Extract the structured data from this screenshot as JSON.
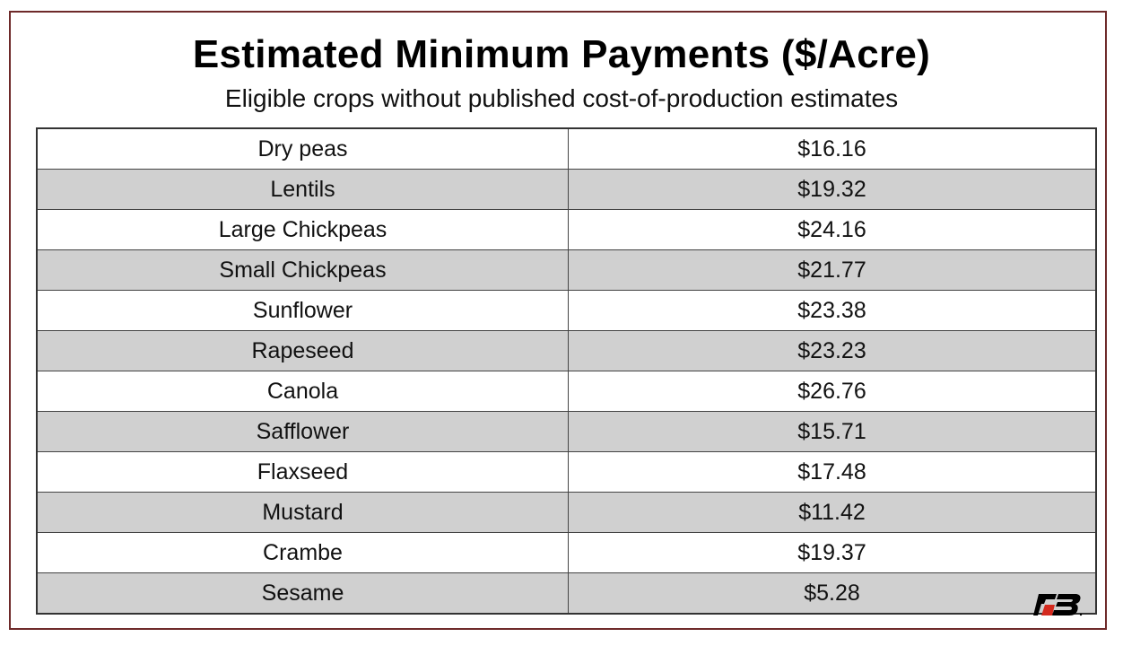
{
  "title": "Estimated Minimum Payments ($/Acre)",
  "subtitle": "Eligible crops without published cost-of-production estimates",
  "rows": [
    {
      "crop": "Dry peas",
      "payment": "$16.16"
    },
    {
      "crop": "Lentils",
      "payment": "$19.32"
    },
    {
      "crop": "Large Chickpeas",
      "payment": "$24.16"
    },
    {
      "crop": "Small Chickpeas",
      "payment": "$21.77"
    },
    {
      "crop": "Sunflower",
      "payment": "$23.38"
    },
    {
      "crop": "Rapeseed",
      "payment": "$23.23"
    },
    {
      "crop": "Canola",
      "payment": "$26.76"
    },
    {
      "crop": "Safflower",
      "payment": "$15.71"
    },
    {
      "crop": "Flaxseed",
      "payment": "$17.48"
    },
    {
      "crop": "Mustard",
      "payment": "$11.42"
    },
    {
      "crop": "Crambe",
      "payment": "$19.37"
    },
    {
      "crop": "Sesame",
      "payment": "$5.28"
    }
  ],
  "logo": {
    "icon": "farm-bureau-logo",
    "text": "FB",
    "accent": "#d42a1e"
  }
}
